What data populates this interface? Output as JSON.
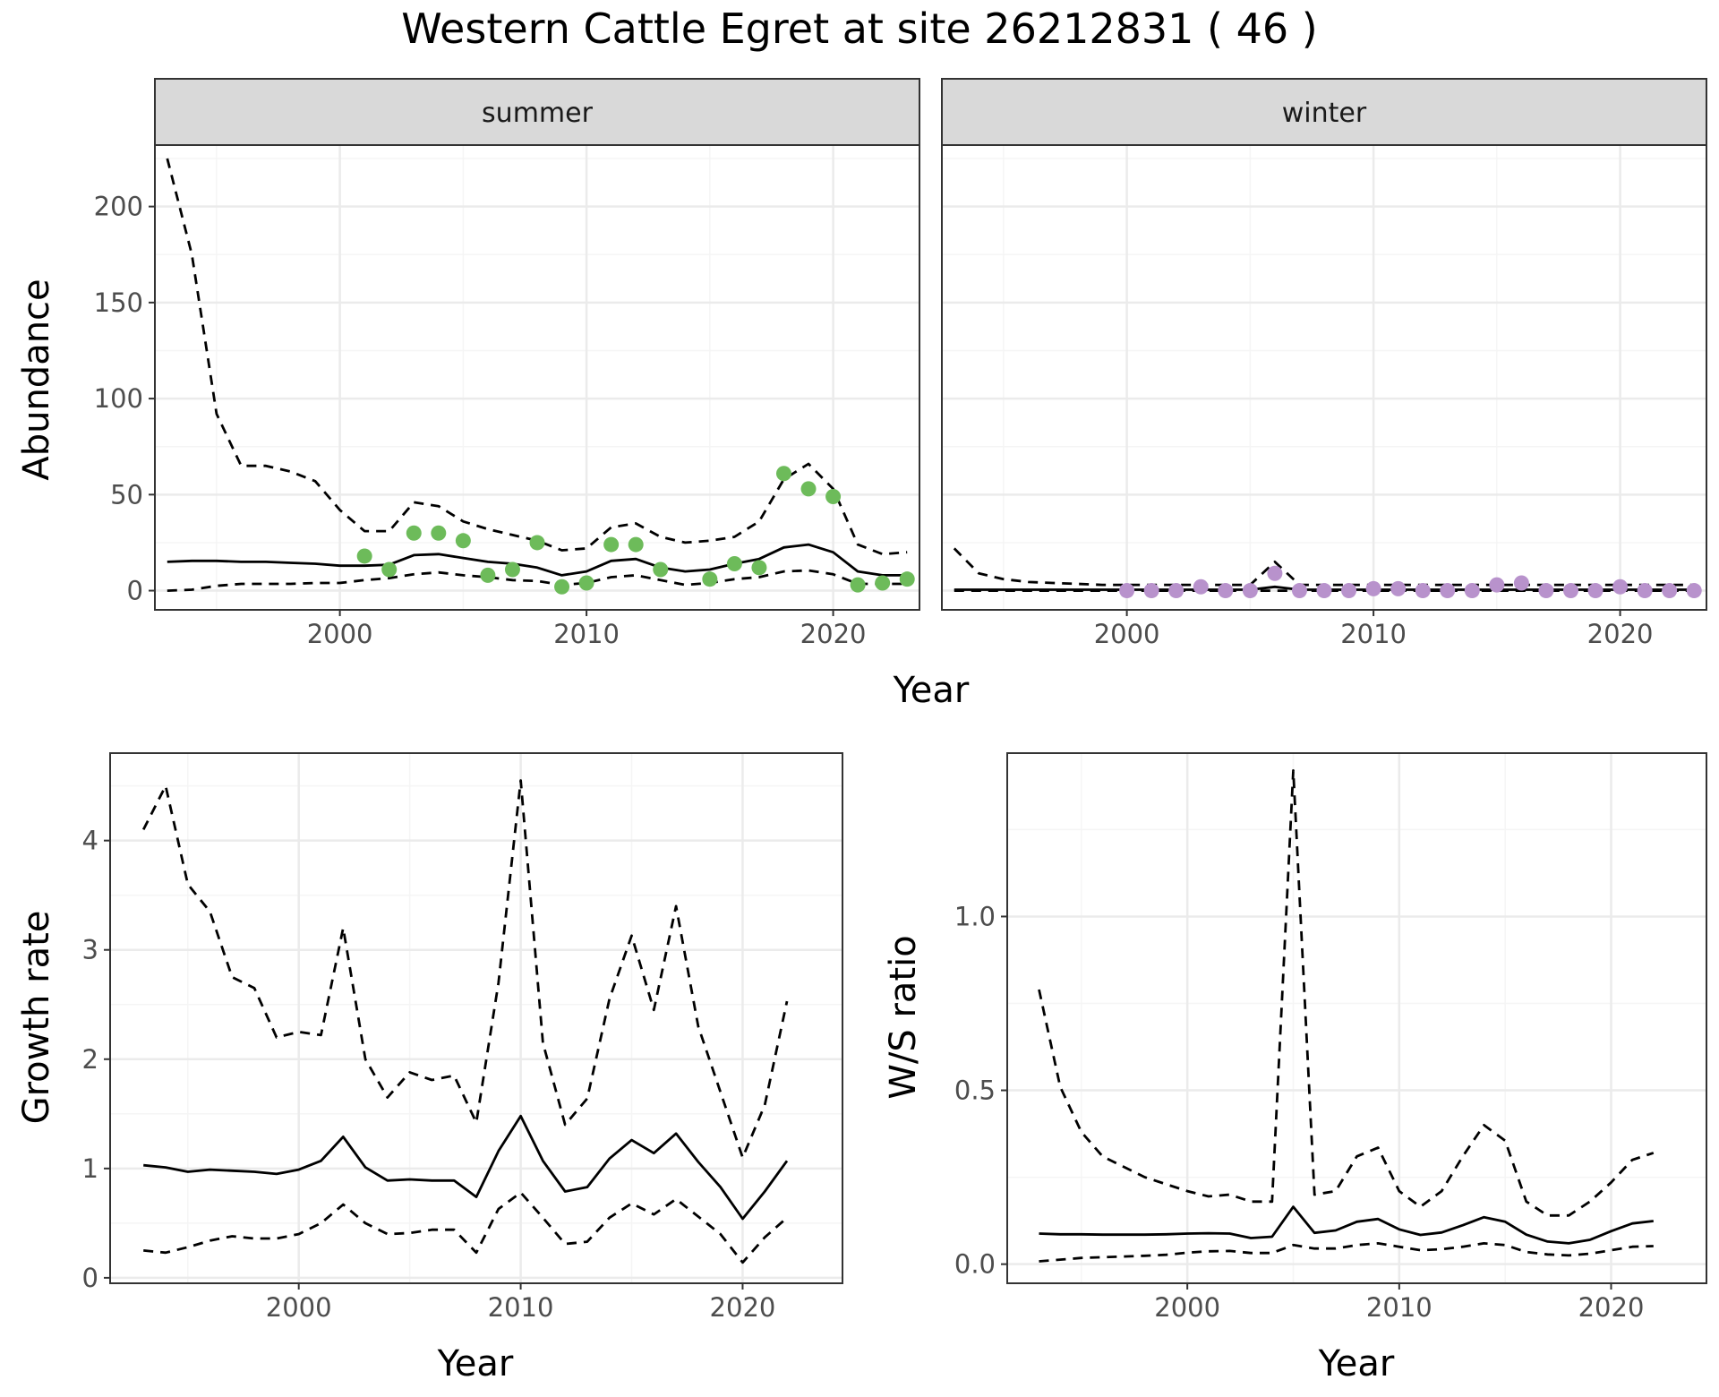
{
  "title": "Western Cattle Egret at site 26212831 ( 46 )",
  "colors": {
    "summer_points": "#6dbb5a",
    "winter_points": "#b892cc",
    "line": "#000000",
    "grid_major": "#ebebeb",
    "grid_minor": "#f5f5f5",
    "strip_fill": "#d9d9d9",
    "panel_border": "#333333"
  },
  "chart_data": [
    {
      "type": "line",
      "facet": "summer",
      "strip_label": "summer",
      "xlabel": "Year",
      "ylabel": "Abundance",
      "xlim": [
        1992.5,
        2023.5
      ],
      "ylim": [
        -10,
        232
      ],
      "x_ticks": [
        2000,
        2010,
        2020
      ],
      "y_ticks": [
        0,
        50,
        100,
        150,
        200
      ],
      "grid": true,
      "x": [
        1993,
        1994,
        1995,
        1996,
        1997,
        1998,
        1999,
        2000,
        2001,
        2002,
        2003,
        2004,
        2005,
        2006,
        2007,
        2008,
        2009,
        2010,
        2011,
        2012,
        2013,
        2014,
        2015,
        2016,
        2017,
        2018,
        2019,
        2020,
        2021,
        2022,
        2023
      ],
      "series": [
        {
          "role": "mean",
          "style": "solid",
          "values": [
            15,
            15.5,
            15.5,
            15,
            15,
            14.5,
            14,
            13,
            13,
            13.5,
            18.5,
            19,
            17,
            15,
            14,
            12,
            8,
            10,
            15.5,
            16.5,
            12,
            10,
            11,
            14,
            16.5,
            22.5,
            24,
            20,
            10,
            8,
            8
          ]
        },
        {
          "role": "upper",
          "style": "dashed",
          "values": [
            225,
            175,
            92,
            65,
            65,
            62,
            57,
            42,
            31,
            31,
            46,
            44,
            36,
            32,
            29,
            26,
            21,
            22,
            33,
            35,
            28,
            25,
            26,
            28,
            36,
            58,
            66,
            53,
            24,
            19,
            20
          ]
        },
        {
          "role": "lower",
          "style": "dashed",
          "values": [
            0,
            0.5,
            2.5,
            3.5,
            3.5,
            3.5,
            4,
            4,
            5.5,
            6.5,
            8.5,
            9.5,
            8,
            7,
            5.5,
            5,
            3,
            4,
            7,
            8,
            5.5,
            3,
            4,
            6,
            7,
            10,
            10.5,
            8.5,
            3.5,
            3.5,
            3.5
          ]
        }
      ],
      "points": {
        "x": [
          2001,
          2002,
          2003,
          2004,
          2005,
          2006,
          2007,
          2008,
          2009,
          2010,
          2011,
          2012,
          2013,
          2015,
          2016,
          2017,
          2018,
          2019,
          2020,
          2021,
          2022,
          2023
        ],
        "y": [
          18,
          11,
          30,
          30,
          26,
          8,
          11,
          25,
          2,
          4,
          24,
          24,
          11,
          6,
          14,
          12,
          61,
          53,
          49,
          3,
          4,
          6
        ]
      }
    },
    {
      "type": "line",
      "facet": "winter",
      "strip_label": "winter",
      "xlabel": "Year",
      "ylabel": "Abundance",
      "xlim": [
        1992.5,
        2023.5
      ],
      "ylim": [
        -10,
        232
      ],
      "x_ticks": [
        2000,
        2010,
        2020
      ],
      "y_ticks": [
        0,
        50,
        100,
        150,
        200
      ],
      "grid": true,
      "x": [
        1993,
        1994,
        1995,
        1996,
        1997,
        1998,
        1999,
        2000,
        2001,
        2002,
        2003,
        2004,
        2005,
        2006,
        2007,
        2008,
        2009,
        2010,
        2011,
        2012,
        2013,
        2014,
        2015,
        2016,
        2017,
        2018,
        2019,
        2020,
        2021,
        2022,
        2023
      ],
      "series": [
        {
          "role": "mean",
          "style": "solid",
          "values": [
            0.5,
            0.5,
            0.5,
            0.5,
            0.5,
            0.5,
            0.5,
            0.5,
            0.5,
            0.5,
            0.5,
            0.5,
            0.5,
            2,
            0.5,
            0.5,
            0.5,
            0.5,
            0.5,
            0.5,
            0.5,
            0.5,
            0.5,
            0.5,
            0.5,
            0.5,
            0.5,
            0.5,
            0.5,
            0.5,
            0.5
          ]
        },
        {
          "role": "upper",
          "style": "dashed",
          "values": [
            22,
            9,
            6,
            4.5,
            4,
            3.5,
            3,
            3,
            3,
            3,
            3,
            3,
            3,
            15,
            3,
            3,
            3,
            3,
            3,
            3,
            3,
            3,
            3,
            3,
            3,
            3,
            3,
            3,
            3,
            3,
            3
          ]
        },
        {
          "role": "lower",
          "style": "dashed",
          "values": [
            0,
            0,
            0,
            0,
            0,
            0,
            0,
            0,
            0,
            0,
            0,
            0,
            0,
            0,
            0,
            0,
            0,
            0,
            0,
            0,
            0,
            0,
            0,
            0,
            0,
            0,
            0,
            0,
            0,
            0,
            0
          ]
        }
      ],
      "points": {
        "x": [
          2000,
          2001,
          2002,
          2003,
          2004,
          2005,
          2006,
          2007,
          2008,
          2009,
          2010,
          2011,
          2012,
          2013,
          2014,
          2015,
          2016,
          2017,
          2018,
          2019,
          2020,
          2021,
          2022,
          2023
        ],
        "y": [
          0,
          0,
          0,
          2,
          0,
          0,
          9,
          0,
          0,
          0,
          1,
          1,
          0,
          0,
          0,
          3,
          4,
          0,
          0,
          0,
          2,
          0,
          0,
          0
        ]
      }
    },
    {
      "type": "line",
      "xlabel": "Year",
      "ylabel": "Growth rate",
      "xlim": [
        1991.5,
        2024.5
      ],
      "ylim": [
        -0.05,
        4.8
      ],
      "x_ticks": [
        2000,
        2010,
        2020
      ],
      "y_ticks": [
        0,
        1,
        2,
        3,
        4
      ],
      "grid": true,
      "x": [
        1993,
        1994,
        1995,
        1996,
        1997,
        1998,
        1999,
        2000,
        2001,
        2002,
        2003,
        2004,
        2005,
        2006,
        2007,
        2008,
        2009,
        2010,
        2011,
        2012,
        2013,
        2014,
        2015,
        2016,
        2017,
        2018,
        2019,
        2020,
        2021,
        2022
      ],
      "series": [
        {
          "role": "mean",
          "style": "solid",
          "values": [
            1.03,
            1.01,
            0.97,
            0.99,
            0.98,
            0.97,
            0.95,
            0.99,
            1.07,
            1.29,
            1.01,
            0.89,
            0.9,
            0.89,
            0.89,
            0.74,
            1.16,
            1.48,
            1.07,
            0.79,
            0.83,
            1.09,
            1.26,
            1.14,
            1.32,
            1.06,
            0.83,
            0.54,
            0.79,
            1.07
          ]
        },
        {
          "role": "upper",
          "style": "dashed",
          "values": [
            4.1,
            4.5,
            3.6,
            3.35,
            2.75,
            2.65,
            2.2,
            2.25,
            2.22,
            3.2,
            2.0,
            1.65,
            1.88,
            1.81,
            1.85,
            1.42,
            2.7,
            4.55,
            2.15,
            1.4,
            1.64,
            2.55,
            3.13,
            2.45,
            3.4,
            2.3,
            1.7,
            1.1,
            1.58,
            2.53
          ]
        },
        {
          "role": "lower",
          "style": "dashed",
          "values": [
            0.25,
            0.23,
            0.28,
            0.34,
            0.38,
            0.36,
            0.36,
            0.4,
            0.5,
            0.67,
            0.5,
            0.4,
            0.41,
            0.44,
            0.44,
            0.23,
            0.63,
            0.78,
            0.55,
            0.31,
            0.33,
            0.55,
            0.68,
            0.58,
            0.72,
            0.56,
            0.4,
            0.14,
            0.37,
            0.55
          ]
        }
      ]
    },
    {
      "type": "line",
      "xlabel": "Year",
      "ylabel": "W/S ratio",
      "xlim": [
        1991.5,
        2024.5
      ],
      "ylim": [
        -0.055,
        1.47
      ],
      "x_ticks": [
        2000,
        2010,
        2020
      ],
      "y_ticks": [
        0.0,
        0.5,
        1.0
      ],
      "y_tick_labels": [
        "0.0",
        "0.5",
        "1.0"
      ],
      "grid": true,
      "x": [
        1993,
        1994,
        1995,
        1996,
        1997,
        1998,
        1999,
        2000,
        2001,
        2002,
        2003,
        2004,
        2005,
        2006,
        2007,
        2008,
        2009,
        2010,
        2011,
        2012,
        2013,
        2014,
        2015,
        2016,
        2017,
        2018,
        2019,
        2020,
        2021,
        2022
      ],
      "series": [
        {
          "role": "mean",
          "style": "solid",
          "values": [
            0.088,
            0.086,
            0.086,
            0.085,
            0.085,
            0.085,
            0.086,
            0.088,
            0.089,
            0.088,
            0.075,
            0.079,
            0.165,
            0.09,
            0.097,
            0.122,
            0.13,
            0.1,
            0.084,
            0.091,
            0.112,
            0.135,
            0.122,
            0.085,
            0.065,
            0.06,
            0.07,
            0.095,
            0.117,
            0.124
          ]
        },
        {
          "role": "upper",
          "style": "dashed",
          "values": [
            0.79,
            0.51,
            0.38,
            0.31,
            0.28,
            0.25,
            0.23,
            0.21,
            0.195,
            0.2,
            0.18,
            0.18,
            1.42,
            0.2,
            0.21,
            0.31,
            0.335,
            0.21,
            0.165,
            0.21,
            0.31,
            0.4,
            0.355,
            0.18,
            0.14,
            0.14,
            0.18,
            0.235,
            0.3,
            0.32
          ]
        },
        {
          "role": "lower",
          "style": "dashed",
          "values": [
            0.008,
            0.013,
            0.018,
            0.02,
            0.022,
            0.024,
            0.027,
            0.033,
            0.037,
            0.038,
            0.032,
            0.032,
            0.055,
            0.045,
            0.045,
            0.055,
            0.06,
            0.05,
            0.04,
            0.043,
            0.05,
            0.06,
            0.055,
            0.035,
            0.028,
            0.025,
            0.03,
            0.04,
            0.05,
            0.052
          ]
        }
      ]
    }
  ]
}
